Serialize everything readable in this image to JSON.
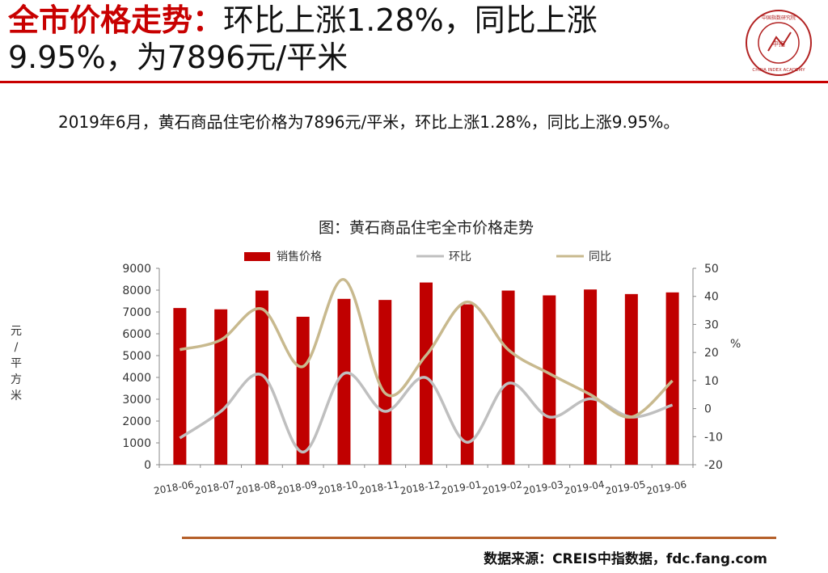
{
  "header": {
    "title_highlight": "全市价格走势：",
    "title_rest": "环比上涨1.28%，同比上涨9.95%，为7896元/平米"
  },
  "logo": {
    "text_top": "中国指数研究院",
    "text_center": "中指",
    "text_bottom": "CHINA INDEX ACADEMY"
  },
  "summary": "2019年6月，黄石商品住宅价格为7896元/平米，环比上涨1.28%，同比上涨9.95%。",
  "colors": {
    "bar": "#c00000",
    "mom": "#bfbfbf",
    "yoy": "#c8b98e",
    "accent": "#c80000"
  },
  "chart_data": {
    "type": "bar",
    "title": "图：黄石商品住宅全市价格走势",
    "categories": [
      "2018-06",
      "2018-07",
      "2018-08",
      "2018-09",
      "2018-10",
      "2018-11",
      "2018-12",
      "2019-01",
      "2019-02",
      "2019-03",
      "2019-04",
      "2019-05",
      "2019-06"
    ],
    "series": [
      {
        "name": "销售价格",
        "type": "bar",
        "axis": "left",
        "values": [
          7180,
          7120,
          7980,
          6780,
          7600,
          7550,
          8350,
          7350,
          7980,
          7760,
          8030,
          7820,
          7896
        ]
      },
      {
        "name": "环比",
        "type": "line",
        "axis": "right",
        "values": [
          -10.5,
          -1.0,
          12.0,
          -15.5,
          12.5,
          -1.0,
          11.0,
          -12.0,
          9.0,
          -3.0,
          3.5,
          -3.0,
          1.28
        ]
      },
      {
        "name": "同比",
        "type": "line",
        "axis": "right",
        "values": [
          21.0,
          24.5,
          35.5,
          15.0,
          46.0,
          5.5,
          19.0,
          38.0,
          21.0,
          12.5,
          5.0,
          -3.0,
          9.95
        ]
      }
    ],
    "y_left": {
      "ylim": [
        0,
        9000
      ],
      "ticks": [
        0,
        1000,
        2000,
        3000,
        4000,
        5000,
        6000,
        7000,
        8000,
        9000
      ],
      "label": "元/平方米"
    },
    "y_right": {
      "ylim": [
        -20,
        50
      ],
      "ticks": [
        -20,
        -10,
        0,
        10,
        20,
        30,
        40,
        50
      ],
      "label": "%"
    },
    "legend": "top",
    "grid": false
  },
  "footer": {
    "source": "数据来源：CREIS中指数据，fdc.fang.com"
  }
}
